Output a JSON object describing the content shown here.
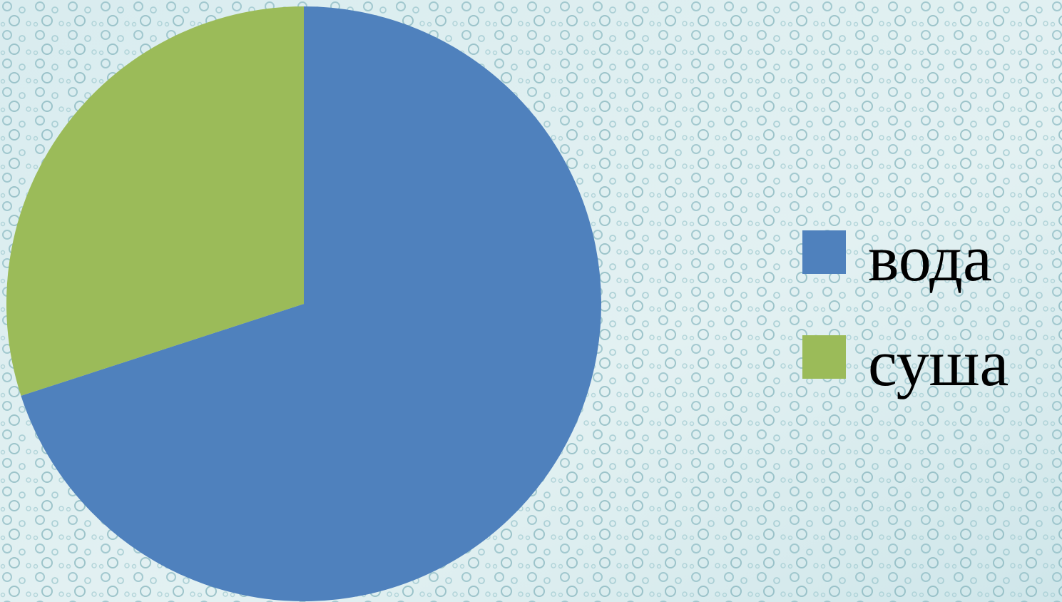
{
  "chart_data": {
    "type": "pie",
    "categories": [
      "вода",
      "суша"
    ],
    "values": [
      70,
      30
    ],
    "colors": [
      "#4f81bd",
      "#9bbb59"
    ],
    "legend": "right"
  }
}
